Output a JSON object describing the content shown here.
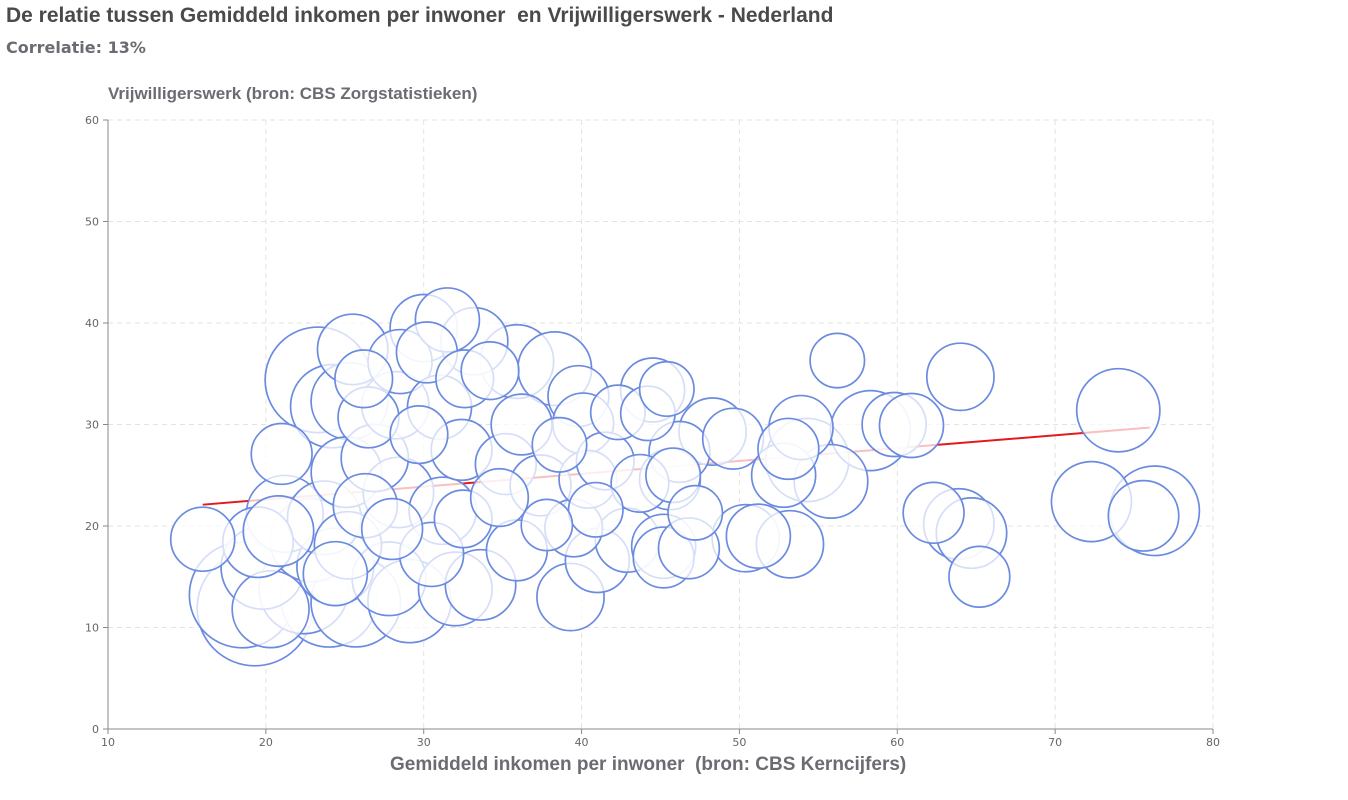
{
  "header": {
    "title": "De relatie tussen Gemiddeld inkomen per inwoner  en Vrijwilligerswerk - Nederland",
    "subtitle": "Correlatie: 13%"
  },
  "colors": {
    "bubble_stroke": "#6b8be0",
    "bubble_fill": "#ffffff",
    "trend": "#e31a1c",
    "axis_text": "#6b6b72"
  },
  "chart_data": {
    "type": "scatter",
    "xlabel": "Gemiddeld inkomen per inwoner  (bron: CBS Kerncijfers)",
    "ylabel": "Vrijwilligerswerk (bron: CBS Zorgstatistieken)",
    "xlim": [
      10,
      80
    ],
    "ylim": [
      0,
      60
    ],
    "xticks": [
      10,
      20,
      30,
      40,
      50,
      60,
      70,
      80
    ],
    "yticks": [
      0,
      10,
      20,
      30,
      40,
      50,
      60
    ],
    "grid": true,
    "trendline": {
      "x": [
        16,
        76
      ],
      "y": [
        22.1,
        29.7
      ]
    },
    "points": [
      {
        "x": 16.0,
        "y": 18.7,
        "r": 2.0
      },
      {
        "x": 19.3,
        "y": 11.9,
        "r": 3.6
      },
      {
        "x": 18.5,
        "y": 13.2,
        "r": 3.3
      },
      {
        "x": 19.8,
        "y": 15.9,
        "r": 2.6
      },
      {
        "x": 20.3,
        "y": 11.8,
        "r": 2.4
      },
      {
        "x": 19.5,
        "y": 18.4,
        "r": 2.2
      },
      {
        "x": 20.8,
        "y": 19.5,
        "r": 2.2
      },
      {
        "x": 21.2,
        "y": 21.2,
        "r": 2.4
      },
      {
        "x": 21.0,
        "y": 27.1,
        "r": 1.9
      },
      {
        "x": 22.4,
        "y": 13.8,
        "r": 2.8
      },
      {
        "x": 22.9,
        "y": 18.6,
        "r": 2.6
      },
      {
        "x": 23.3,
        "y": 34.4,
        "r": 3.3
      },
      {
        "x": 24.0,
        "y": 12.8,
        "r": 3.0
      },
      {
        "x": 24.4,
        "y": 16.0,
        "r": 2.4
      },
      {
        "x": 23.7,
        "y": 20.8,
        "r": 2.3
      },
      {
        "x": 24.2,
        "y": 31.8,
        "r": 2.6
      },
      {
        "x": 25.1,
        "y": 25.3,
        "r": 2.2
      },
      {
        "x": 25.7,
        "y": 12.5,
        "r": 2.8
      },
      {
        "x": 24.4,
        "y": 15.3,
        "r": 2.0
      },
      {
        "x": 25.2,
        "y": 18.1,
        "r": 2.1
      },
      {
        "x": 25.3,
        "y": 32.3,
        "r": 2.4
      },
      {
        "x": 25.5,
        "y": 37.4,
        "r": 2.2
      },
      {
        "x": 26.3,
        "y": 22.0,
        "r": 2.0
      },
      {
        "x": 26.9,
        "y": 26.7,
        "r": 2.1
      },
      {
        "x": 26.5,
        "y": 30.7,
        "r": 1.9
      },
      {
        "x": 26.2,
        "y": 34.5,
        "r": 1.8
      },
      {
        "x": 27.8,
        "y": 14.8,
        "r": 2.3
      },
      {
        "x": 28.0,
        "y": 19.7,
        "r": 1.9
      },
      {
        "x": 28.4,
        "y": 23.3,
        "r": 2.2
      },
      {
        "x": 28.2,
        "y": 31.9,
        "r": 2.1
      },
      {
        "x": 28.5,
        "y": 36.2,
        "r": 2.0
      },
      {
        "x": 29.1,
        "y": 12.6,
        "r": 2.6
      },
      {
        "x": 29.7,
        "y": 29.0,
        "r": 1.8
      },
      {
        "x": 30.0,
        "y": 39.5,
        "r": 2.1
      },
      {
        "x": 30.2,
        "y": 37.1,
        "r": 1.9
      },
      {
        "x": 30.5,
        "y": 17.2,
        "r": 2.0
      },
      {
        "x": 31.2,
        "y": 21.5,
        "r": 2.1
      },
      {
        "x": 31.5,
        "y": 40.3,
        "r": 2.0
      },
      {
        "x": 31.0,
        "y": 31.7,
        "r": 2.0
      },
      {
        "x": 32.0,
        "y": 13.8,
        "r": 2.3
      },
      {
        "x": 32.5,
        "y": 20.7,
        "r": 1.8
      },
      {
        "x": 32.4,
        "y": 27.5,
        "r": 1.9
      },
      {
        "x": 32.6,
        "y": 34.5,
        "r": 1.8
      },
      {
        "x": 33.2,
        "y": 38.2,
        "r": 2.1
      },
      {
        "x": 33.6,
        "y": 14.2,
        "r": 2.2
      },
      {
        "x": 34.2,
        "y": 35.3,
        "r": 1.8
      },
      {
        "x": 34.8,
        "y": 22.8,
        "r": 1.8
      },
      {
        "x": 35.2,
        "y": 26.1,
        "r": 1.9
      },
      {
        "x": 35.9,
        "y": 36.2,
        "r": 2.3
      },
      {
        "x": 35.9,
        "y": 17.6,
        "r": 1.9
      },
      {
        "x": 36.2,
        "y": 30.0,
        "r": 1.9
      },
      {
        "x": 37.4,
        "y": 24.0,
        "r": 1.9
      },
      {
        "x": 38.3,
        "y": 35.5,
        "r": 2.3
      },
      {
        "x": 37.8,
        "y": 20.1,
        "r": 1.6
      },
      {
        "x": 38.6,
        "y": 28.0,
        "r": 1.7
      },
      {
        "x": 39.3,
        "y": 13.0,
        "r": 2.1
      },
      {
        "x": 39.5,
        "y": 19.8,
        "r": 1.8
      },
      {
        "x": 39.8,
        "y": 32.8,
        "r": 1.9
      },
      {
        "x": 40.1,
        "y": 30.1,
        "r": 1.9
      },
      {
        "x": 40.4,
        "y": 24.6,
        "r": 1.8
      },
      {
        "x": 40.9,
        "y": 21.6,
        "r": 1.7
      },
      {
        "x": 41.0,
        "y": 16.6,
        "r": 2.0
      },
      {
        "x": 41.5,
        "y": 26.4,
        "r": 1.8
      },
      {
        "x": 42.3,
        "y": 31.2,
        "r": 1.7
      },
      {
        "x": 42.9,
        "y": 18.6,
        "r": 2.0
      },
      {
        "x": 43.7,
        "y": 24.2,
        "r": 1.8
      },
      {
        "x": 44.2,
        "y": 31.1,
        "r": 1.7
      },
      {
        "x": 44.5,
        "y": 33.4,
        "r": 2.0
      },
      {
        "x": 45.2,
        "y": 16.9,
        "r": 1.9
      },
      {
        "x": 45.2,
        "y": 18.0,
        "r": 2.0
      },
      {
        "x": 45.6,
        "y": 24.6,
        "r": 1.9
      },
      {
        "x": 45.4,
        "y": 33.5,
        "r": 1.7
      },
      {
        "x": 45.8,
        "y": 25.0,
        "r": 1.7
      },
      {
        "x": 46.2,
        "y": 27.3,
        "r": 1.9
      },
      {
        "x": 46.8,
        "y": 17.8,
        "r": 1.9
      },
      {
        "x": 47.2,
        "y": 21.3,
        "r": 1.7
      },
      {
        "x": 48.3,
        "y": 29.3,
        "r": 2.1
      },
      {
        "x": 49.6,
        "y": 28.6,
        "r": 1.9
      },
      {
        "x": 50.4,
        "y": 18.8,
        "r": 2.1
      },
      {
        "x": 51.2,
        "y": 19.0,
        "r": 2.0
      },
      {
        "x": 52.8,
        "y": 25.0,
        "r": 2.0
      },
      {
        "x": 53.1,
        "y": 27.6,
        "r": 1.9
      },
      {
        "x": 53.2,
        "y": 18.2,
        "r": 2.1
      },
      {
        "x": 53.9,
        "y": 29.7,
        "r": 2.0
      },
      {
        "x": 54.3,
        "y": 26.5,
        "r": 2.6
      },
      {
        "x": 55.8,
        "y": 24.4,
        "r": 2.3
      },
      {
        "x": 56.2,
        "y": 36.3,
        "r": 1.7
      },
      {
        "x": 58.3,
        "y": 29.4,
        "r": 2.5
      },
      {
        "x": 59.8,
        "y": 30.0,
        "r": 2.0
      },
      {
        "x": 60.9,
        "y": 29.9,
        "r": 2.0
      },
      {
        "x": 62.3,
        "y": 21.3,
        "r": 1.9
      },
      {
        "x": 63.9,
        "y": 20.2,
        "r": 2.2
      },
      {
        "x": 64.0,
        "y": 34.7,
        "r": 2.1
      },
      {
        "x": 64.7,
        "y": 19.3,
        "r": 2.2
      },
      {
        "x": 65.2,
        "y": 15.0,
        "r": 1.9
      },
      {
        "x": 72.3,
        "y": 22.4,
        "r": 2.5
      },
      {
        "x": 74.0,
        "y": 31.4,
        "r": 2.6
      },
      {
        "x": 75.6,
        "y": 21.0,
        "r": 2.2
      },
      {
        "x": 76.3,
        "y": 21.5,
        "r": 2.8
      }
    ]
  }
}
